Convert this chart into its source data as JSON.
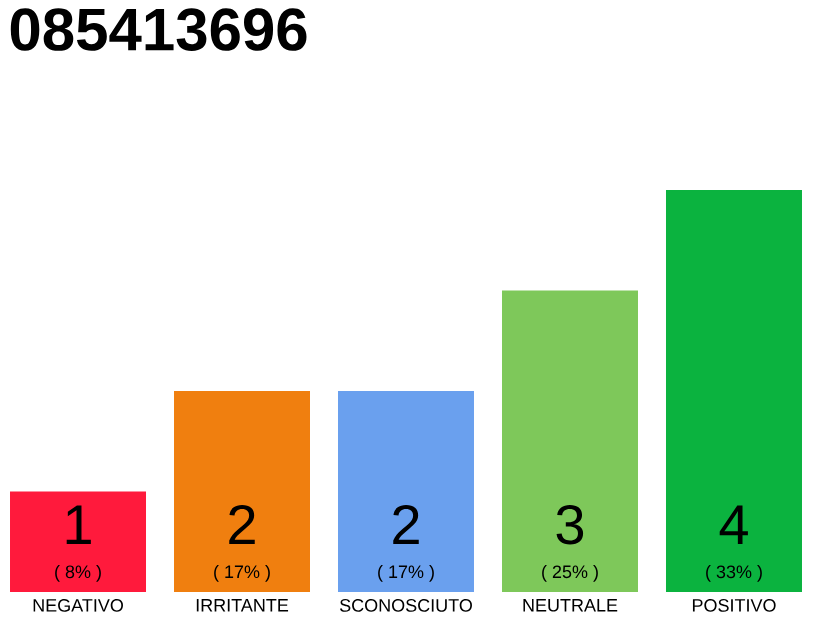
{
  "chart_data": {
    "type": "bar",
    "title": "085413696",
    "categories": [
      "NEGATIVO",
      "IRRITANTE",
      "SCONOSCIUTO",
      "NEUTRALE",
      "POSITIVO"
    ],
    "values": [
      1,
      2,
      2,
      3,
      4
    ],
    "colors": [
      "#ff1a3c",
      "#f07f0f",
      "#6aa0ee",
      "#7ec85a",
      "#0bb33f"
    ],
    "data_labels": true,
    "annotations": [
      "( 8% )",
      "( 17% )",
      "( 17% )",
      "( 25% )",
      "( 33% )"
    ]
  }
}
